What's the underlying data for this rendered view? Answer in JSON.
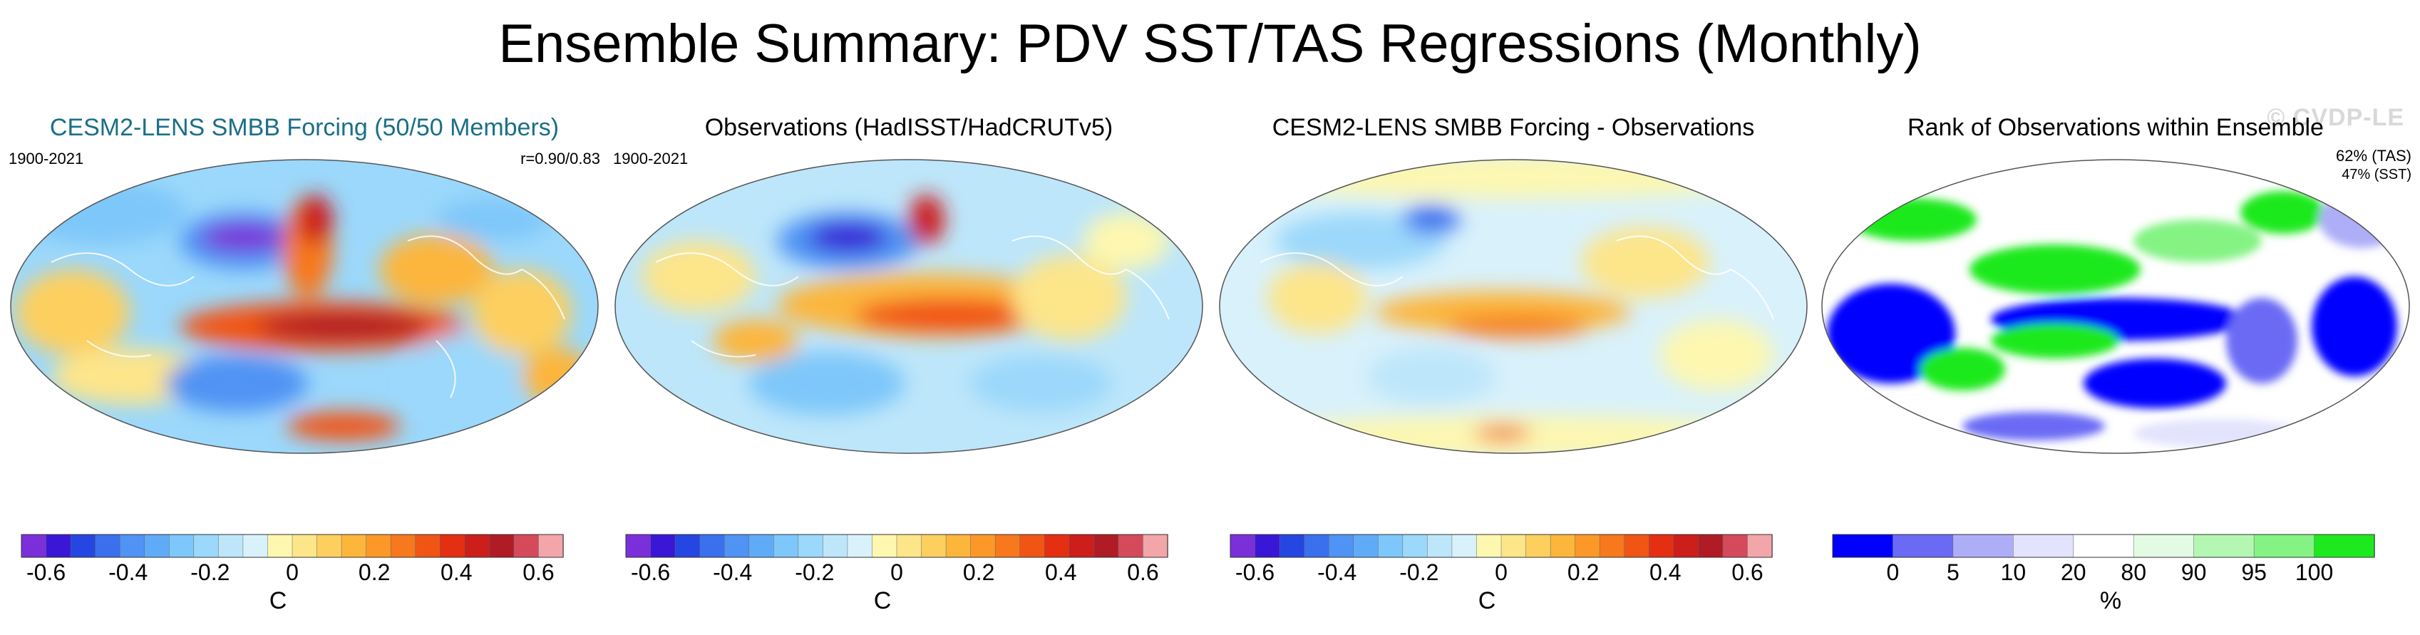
{
  "figure": {
    "title": "Ensemble Summary: PDV SST/TAS Regressions (Monthly)"
  },
  "watermark": "© CVDP-LE",
  "panels": [
    {
      "title": "CESM2-LENS SMBB Forcing (50/50 Members)",
      "period": "1900-2021",
      "stat": "r=0.90/0.83",
      "type": "diverging"
    },
    {
      "title": "Observations (HadISST/HadCRUTv5)",
      "period": "1900-2021",
      "type": "diverging"
    },
    {
      "title": "CESM2-LENS SMBB Forcing - Observations",
      "type": "diverging"
    },
    {
      "title": "Rank of Observations within Ensemble",
      "stat_tas": "62% (TAS)",
      "stat_sst": "47% (SST)",
      "type": "rank"
    }
  ],
  "colorbar_diverging": {
    "unit": "C",
    "tick_labels": [
      "-0.6",
      "-0.4",
      "-0.2",
      "0",
      "0.2",
      "0.4",
      "0.6"
    ],
    "colors": [
      "#7b2fd9",
      "#3a17d6",
      "#2546e2",
      "#3a6fee",
      "#4f93f4",
      "#60abf7",
      "#7ec7fa",
      "#9bd8fb",
      "#bde6fa",
      "#d8f1fb",
      "#fdf7b0",
      "#fde58a",
      "#fdcf5e",
      "#fcb63c",
      "#fb9828",
      "#f7781d",
      "#f15516",
      "#e52f12",
      "#cc1e1a",
      "#b01c25",
      "#d44a5a",
      "#f2a6aa"
    ]
  },
  "colorbar_rank": {
    "unit": "%",
    "tick_labels": [
      "0",
      "5",
      "10",
      "20",
      "80",
      "90",
      "95",
      "100"
    ],
    "colors": [
      "#0000ff",
      "#6a6af5",
      "#aeaef8",
      "#e3e3fd",
      "#ffffff",
      "#e3fbe3",
      "#b3f7b3",
      "#84f384",
      "#1ee91e"
    ]
  }
}
